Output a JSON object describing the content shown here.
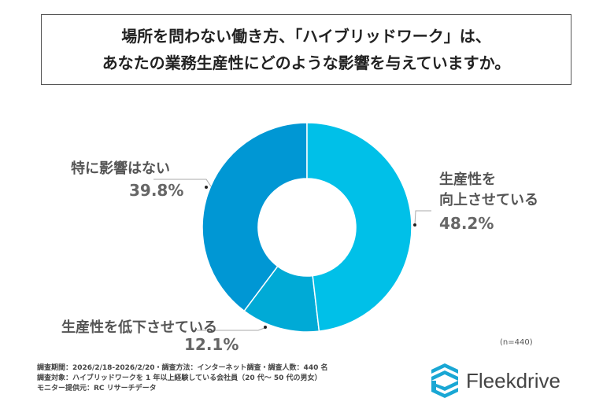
{
  "title": {
    "line1": "場所を問わない働き方、「ハイブリッドワーク」は、",
    "line2": "あなたの業務生産性にどのような影響を与えていますか。"
  },
  "chart_data": {
    "type": "pie",
    "donut": true,
    "title": "場所を問わない働き方、「ハイブリッドワーク」は、あなたの業務生産性にどのような影響を与えていますか。",
    "slices": [
      {
        "label": "生産性を向上させている",
        "label_lines": [
          "生産性を",
          "向上させている"
        ],
        "value": 48.2,
        "display": "48.2%",
        "color": "#00c0e8"
      },
      {
        "label": "生産性を低下させている",
        "value": 12.1,
        "display": "12.1%",
        "color": "#00aad6"
      },
      {
        "label": "特に影響はない",
        "value": 39.8,
        "display": "39.8%",
        "color": "#0097d4"
      }
    ],
    "sample": "(n=440)"
  },
  "notes": [
    "調査期間：2026/2/18-2026/2/20・調査方法：インターネット調査・調査人数：440 名",
    "調査対象：ハイブリッドワークを 1 年以上経験している会社員（20 代～ 50 代の男女）",
    "モニター提供元：RC リサーチデータ"
  ],
  "logo": {
    "text": "Fleekdrive"
  }
}
